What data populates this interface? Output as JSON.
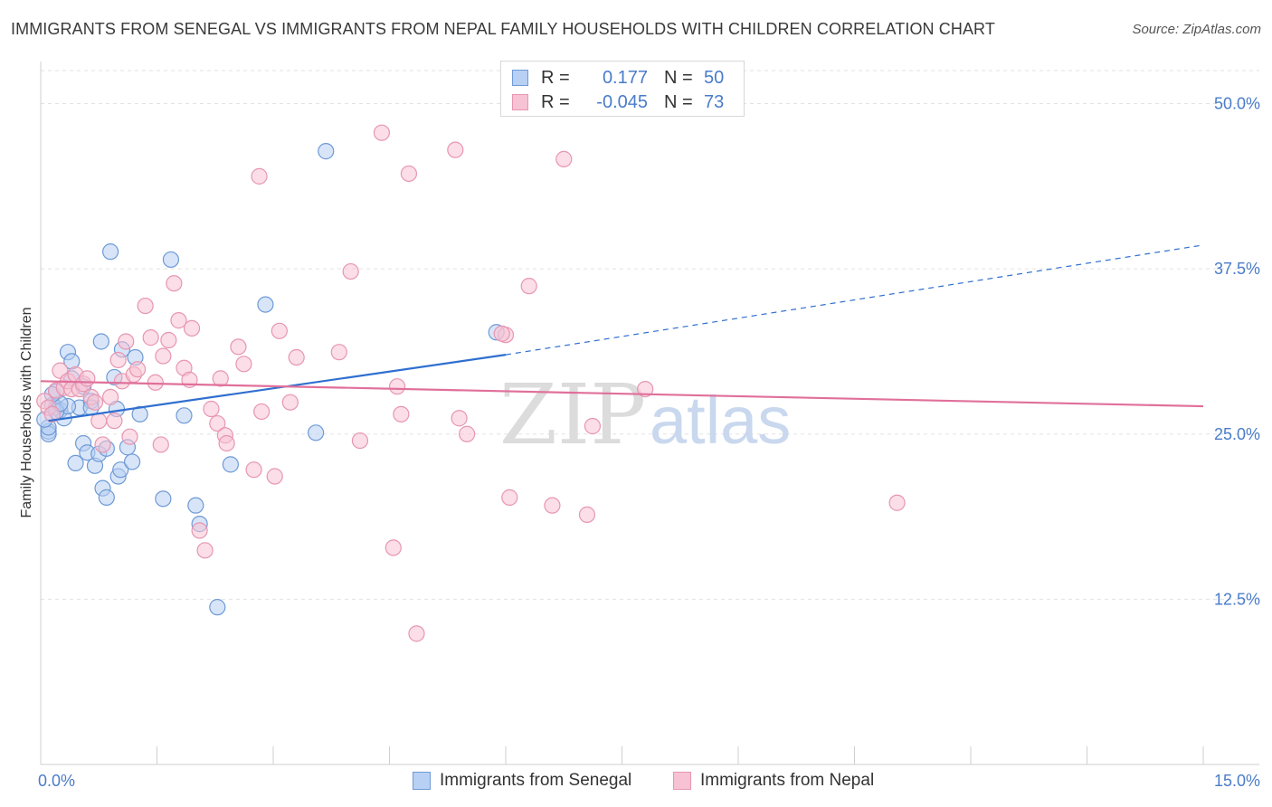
{
  "title": "IMMIGRANTS FROM SENEGAL VS IMMIGRANTS FROM NEPAL FAMILY HOUSEHOLDS WITH CHILDREN CORRELATION CHART",
  "source": "Source: ZipAtlas.com",
  "watermark": {
    "zip": "ZIP",
    "atlas": "atlas"
  },
  "legend": {
    "series": [
      {
        "r_label": "R =",
        "r_value": "0.177",
        "n_label": "N =",
        "n_value": "50"
      },
      {
        "r_label": "R =",
        "r_value": "-0.045",
        "n_label": "N =",
        "n_value": "73"
      }
    ]
  },
  "colors": {
    "senegal_fill": "#b8d0f3",
    "senegal_stroke": "#6e9ad6",
    "senegal_line": "#2f6fcf",
    "nepal_fill": "#f7c2d3",
    "nepal_stroke": "#e796b1",
    "nepal_line": "#e0709a",
    "tick_text": "#4a7cc9",
    "grid": "#e2e2e2"
  },
  "chart_data": {
    "type": "scatter",
    "title": "IMMIGRANTS FROM SENEGAL VS IMMIGRANTS FROM NEPAL FAMILY HOUSEHOLDS WITH CHILDREN CORRELATION CHART",
    "xlabel": "",
    "ylabel": "Family Households with Children",
    "xlim": [
      0,
      15
    ],
    "ylim": [
      0,
      52.5
    ],
    "x_tick_labels": [
      "0.0%",
      "15.0%"
    ],
    "y_ticks": [
      12.5,
      25.0,
      37.5,
      50.0
    ],
    "y_tick_labels": [
      "12.5%",
      "25.0%",
      "37.5%",
      "50.0%"
    ],
    "grid": true,
    "legend_position": "top-center",
    "series": [
      {
        "name": "Immigrants from Senegal",
        "points": [
          [
            0.1,
            25.2
          ],
          [
            0.1,
            25.0
          ],
          [
            0.15,
            27.2
          ],
          [
            0.2,
            28.2
          ],
          [
            0.2,
            27.0
          ],
          [
            0.25,
            26.8
          ],
          [
            0.3,
            26.2
          ],
          [
            0.35,
            31.2
          ],
          [
            0.4,
            29.2
          ],
          [
            0.4,
            30.5
          ],
          [
            0.45,
            22.8
          ],
          [
            0.5,
            27.0
          ],
          [
            0.55,
            24.3
          ],
          [
            0.6,
            23.6
          ],
          [
            0.65,
            27.5
          ],
          [
            0.65,
            27.0
          ],
          [
            0.7,
            22.6
          ],
          [
            0.75,
            23.5
          ],
          [
            0.78,
            32.0
          ],
          [
            0.8,
            20.9
          ],
          [
            0.85,
            23.9
          ],
          [
            0.85,
            20.2
          ],
          [
            0.95,
            29.3
          ],
          [
            0.98,
            26.9
          ],
          [
            1.0,
            21.8
          ],
          [
            1.03,
            22.3
          ],
          [
            1.05,
            31.4
          ],
          [
            1.12,
            24.0
          ],
          [
            1.18,
            22.9
          ],
          [
            1.22,
            30.8
          ],
          [
            1.28,
            26.5
          ],
          [
            1.58,
            20.1
          ],
          [
            1.68,
            38.2
          ],
          [
            1.85,
            26.4
          ],
          [
            2.0,
            19.6
          ],
          [
            2.05,
            18.2
          ],
          [
            2.28,
            11.9
          ],
          [
            2.45,
            22.7
          ],
          [
            2.9,
            34.8
          ],
          [
            3.55,
            25.1
          ],
          [
            3.68,
            46.4
          ],
          [
            5.88,
            32.7
          ],
          [
            0.9,
            38.8
          ],
          [
            0.55,
            28.6
          ],
          [
            0.35,
            27.1
          ],
          [
            0.2,
            26.7
          ],
          [
            0.1,
            25.5
          ],
          [
            0.05,
            26.1
          ],
          [
            0.25,
            27.3
          ],
          [
            0.15,
            28.0
          ]
        ],
        "trend": {
          "x": [
            0.1,
            6.0
          ],
          "y": [
            26.0,
            31.0
          ],
          "dashed_to": [
            15.0,
            39.3
          ]
        }
      },
      {
        "name": "Immigrants from Nepal",
        "points": [
          [
            0.05,
            27.5
          ],
          [
            0.1,
            27.0
          ],
          [
            0.15,
            26.5
          ],
          [
            0.2,
            28.3
          ],
          [
            0.25,
            29.8
          ],
          [
            0.3,
            28.5
          ],
          [
            0.35,
            29.0
          ],
          [
            0.4,
            28.4
          ],
          [
            0.45,
            29.5
          ],
          [
            0.5,
            28.4
          ],
          [
            0.55,
            28.8
          ],
          [
            0.6,
            29.2
          ],
          [
            0.65,
            27.8
          ],
          [
            0.7,
            27.4
          ],
          [
            0.75,
            26.0
          ],
          [
            0.8,
            24.2
          ],
          [
            0.9,
            27.8
          ],
          [
            0.95,
            26.0
          ],
          [
            1.0,
            30.6
          ],
          [
            1.05,
            29.0
          ],
          [
            1.1,
            32.0
          ],
          [
            1.15,
            24.8
          ],
          [
            1.2,
            29.5
          ],
          [
            1.25,
            29.9
          ],
          [
            1.35,
            34.7
          ],
          [
            1.42,
            32.3
          ],
          [
            1.48,
            28.9
          ],
          [
            1.55,
            24.2
          ],
          [
            1.58,
            30.9
          ],
          [
            1.65,
            32.1
          ],
          [
            1.72,
            36.4
          ],
          [
            1.78,
            33.6
          ],
          [
            1.85,
            30.0
          ],
          [
            1.92,
            29.1
          ],
          [
            1.95,
            33.0
          ],
          [
            2.05,
            17.7
          ],
          [
            2.12,
            16.2
          ],
          [
            2.2,
            26.9
          ],
          [
            2.28,
            25.8
          ],
          [
            2.32,
            29.2
          ],
          [
            2.38,
            24.9
          ],
          [
            2.4,
            24.3
          ],
          [
            2.55,
            31.6
          ],
          [
            2.62,
            30.3
          ],
          [
            2.75,
            22.3
          ],
          [
            2.82,
            44.5
          ],
          [
            2.85,
            26.7
          ],
          [
            3.02,
            21.8
          ],
          [
            3.08,
            32.8
          ],
          [
            3.22,
            27.4
          ],
          [
            3.3,
            30.8
          ],
          [
            3.85,
            31.2
          ],
          [
            4.0,
            37.3
          ],
          [
            4.12,
            24.5
          ],
          [
            4.4,
            47.8
          ],
          [
            4.55,
            16.4
          ],
          [
            4.6,
            28.6
          ],
          [
            4.65,
            26.5
          ],
          [
            4.75,
            44.7
          ],
          [
            4.85,
            9.9
          ],
          [
            5.35,
            46.5
          ],
          [
            5.4,
            26.2
          ],
          [
            5.5,
            25.0
          ],
          [
            6.05,
            20.2
          ],
          [
            6.3,
            36.2
          ],
          [
            6.6,
            19.6
          ],
          [
            6.75,
            45.8
          ],
          [
            7.05,
            18.9
          ],
          [
            7.12,
            25.6
          ],
          [
            7.8,
            28.4
          ],
          [
            11.05,
            19.8
          ],
          [
            6.0,
            32.5
          ],
          [
            5.95,
            32.6
          ]
        ],
        "trend": {
          "x": [
            0.0,
            15.0
          ],
          "y": [
            29.0,
            27.1
          ]
        }
      }
    ]
  }
}
